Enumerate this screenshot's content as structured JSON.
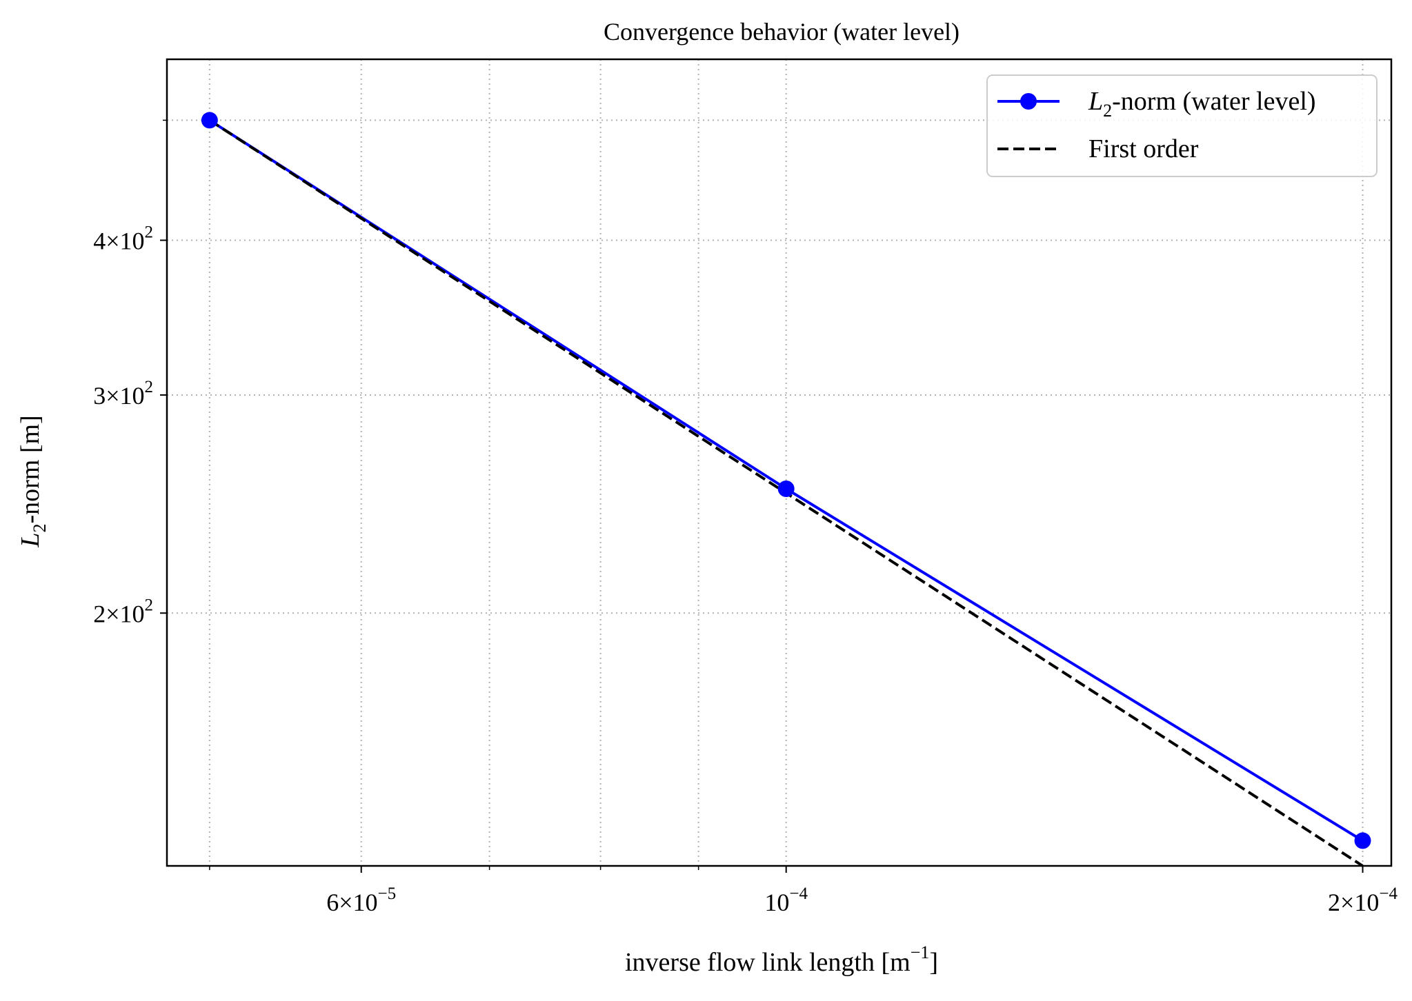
{
  "chart_data": {
    "type": "line",
    "title": "Convergence behavior (water level)",
    "xlabel": {
      "main": "inverse flow link length [m",
      "sup": "−1",
      "end": "]"
    },
    "ylabel": {
      "italic": "L",
      "sub": "2",
      "rest": "-norm [m]"
    },
    "x_scale": "log",
    "y_scale": "log",
    "xlim": [
      4.75e-05,
      0.000207
    ],
    "ylim": [
      125,
      560
    ],
    "grid": true,
    "legend_position": "top-right",
    "x_ticks": [
      {
        "value": 6e-05,
        "base": "6×10",
        "exp": "−5"
      },
      {
        "value": 0.0001,
        "base": "10",
        "exp": "−4"
      },
      {
        "value": 0.0002,
        "base": "2×10",
        "exp": "−4"
      }
    ],
    "x_minor_ticks": [
      5e-05,
      7e-05,
      8e-05,
      9e-05
    ],
    "y_ticks": [
      {
        "value": 200,
        "base": "2×10",
        "exp": "2"
      },
      {
        "value": 300,
        "base": "3×10",
        "exp": "2"
      },
      {
        "value": 400,
        "base": "4×10",
        "exp": "2"
      }
    ],
    "y_minor_ticks": [
      500
    ],
    "series": [
      {
        "name": {
          "italic": "L",
          "sub": "2",
          "rest": "-norm (water level)"
        },
        "color": "#0000ff",
        "style": "solid",
        "marker": "circle",
        "x": [
          5e-05,
          0.0001,
          0.0002
        ],
        "y": [
          500,
          252,
          131
        ]
      },
      {
        "name": {
          "text": "First order"
        },
        "color": "#000000",
        "style": "dashed",
        "marker": "none",
        "x": [
          5e-05,
          0.0001,
          0.0002
        ],
        "y": [
          500,
          250,
          125
        ]
      }
    ]
  }
}
